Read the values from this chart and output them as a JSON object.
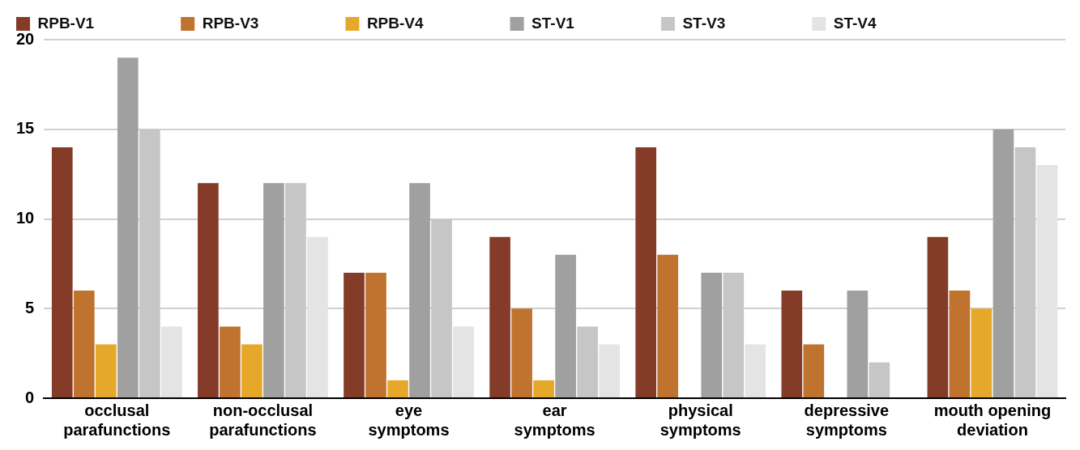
{
  "chart_data": {
    "type": "bar",
    "categories": [
      "occlusal parafunctions",
      "non-occlusal parafunctions",
      "eye symptoms",
      "ear symptoms",
      "physical symptoms",
      "depressive symptoms",
      "mouth opening deviation"
    ],
    "series": [
      {
        "name": "RPB-V1",
        "color": "#843c29",
        "values": [
          14,
          12,
          7,
          9,
          14,
          6,
          9
        ]
      },
      {
        "name": "RPB-V3",
        "color": "#c0722f",
        "values": [
          6,
          4,
          7,
          5,
          8,
          3,
          6
        ]
      },
      {
        "name": "RPB-V4",
        "color": "#e6a82a",
        "values": [
          3,
          3,
          1,
          1,
          0,
          0,
          5
        ]
      },
      {
        "name": "ST-V1",
        "color": "#a0a0a0",
        "values": [
          19,
          12,
          12,
          8,
          7,
          6,
          15
        ]
      },
      {
        "name": "ST-V3",
        "color": "#c6c6c6",
        "values": [
          15,
          12,
          10,
          4,
          7,
          2,
          14
        ]
      },
      {
        "name": "ST-V4",
        "color": "#e4e4e4",
        "values": [
          4,
          9,
          4,
          3,
          3,
          0,
          13
        ]
      }
    ],
    "ylim": [
      0,
      20
    ],
    "yticks": [
      0,
      5,
      10,
      15,
      20
    ],
    "grid": "y",
    "legend": "top"
  }
}
